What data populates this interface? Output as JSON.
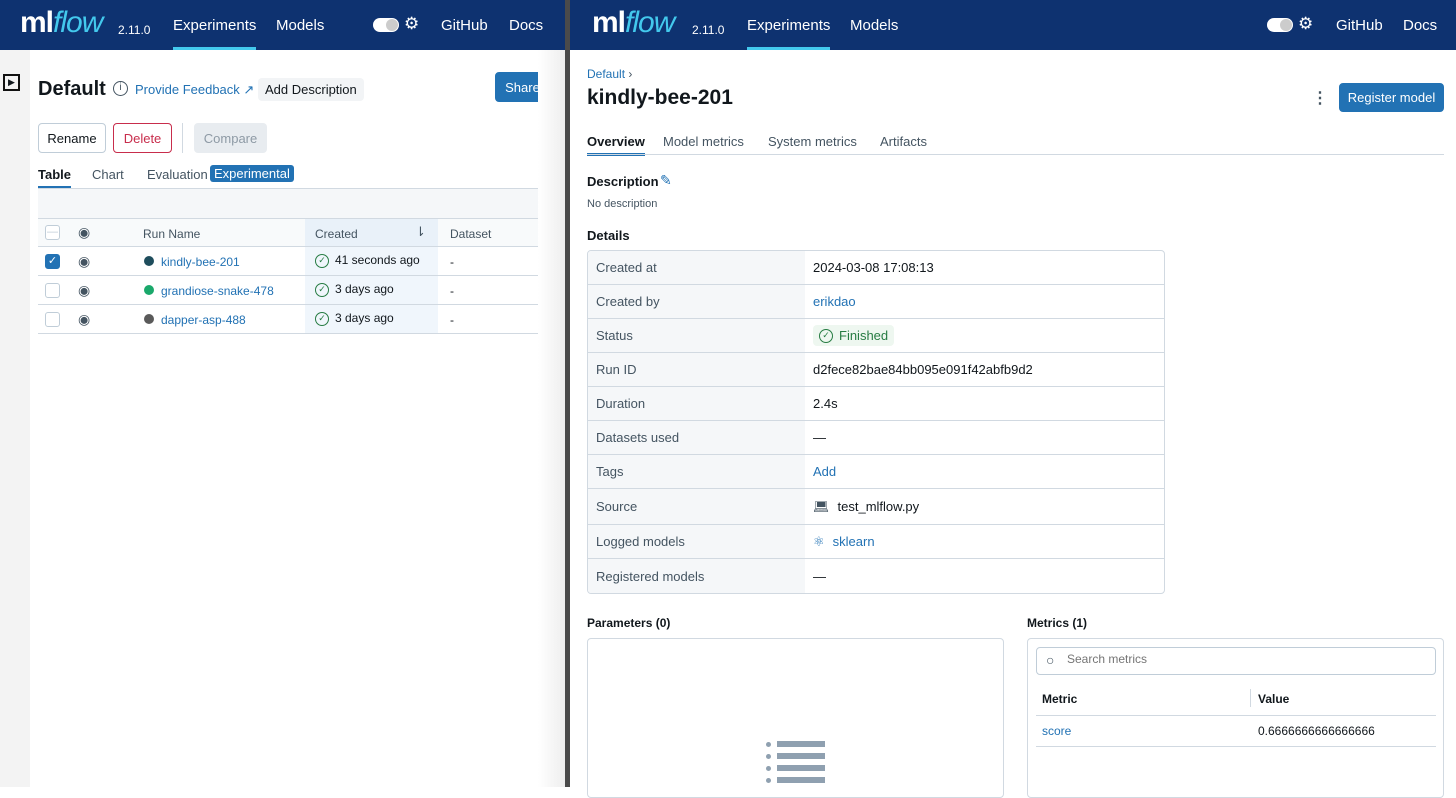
{
  "header": {
    "logo": "mlflow",
    "logo_ml": "ml",
    "logo_flow": "flow",
    "version": "2.11.0",
    "nav": [
      "Experiments",
      "Models"
    ],
    "links": [
      "GitHub",
      "Docs"
    ]
  },
  "left": {
    "title": "Default",
    "feedback": "Provide Feedback",
    "add_description": "Add Description",
    "share": "Share",
    "actions": {
      "rename": "Rename",
      "delete": "Delete",
      "compare": "Compare"
    },
    "tabs": [
      "Table",
      "Chart",
      "Evaluation"
    ],
    "experimental_badge": "Experimental",
    "columns": {
      "run_name": "Run Name",
      "created": "Created",
      "dataset": "Dataset"
    },
    "runs": [
      {
        "name": "kindly-bee-201",
        "created": "41 seconds ago",
        "dataset": "-",
        "color": "#1e4d5c",
        "checked": true
      },
      {
        "name": "grandiose-snake-478",
        "created": "3 days ago",
        "dataset": "-",
        "color": "#1aa86b",
        "checked": false
      },
      {
        "name": "dapper-asp-488",
        "created": "3 days ago",
        "dataset": "-",
        "color": "#5a5a5a",
        "checked": false
      }
    ]
  },
  "right": {
    "breadcrumb": "Default",
    "title": "kindly-bee-201",
    "register": "Register model",
    "tabs": [
      "Overview",
      "Model metrics",
      "System metrics",
      "Artifacts"
    ],
    "description_label": "Description",
    "description": "No description",
    "details_label": "Details",
    "details": [
      {
        "label": "Created at",
        "value": "2024-03-08 17:08:13"
      },
      {
        "label": "Created by",
        "value": "erikdao"
      },
      {
        "label": "Status",
        "value": "Finished"
      },
      {
        "label": "Run ID",
        "value": "d2fece82bae84bb095e091f42abfb9d2"
      },
      {
        "label": "Duration",
        "value": "2.4s"
      },
      {
        "label": "Datasets used",
        "value": "—"
      },
      {
        "label": "Tags",
        "value": "Add"
      },
      {
        "label": "Source",
        "value": "test_mlflow.py"
      },
      {
        "label": "Logged models",
        "value": "sklearn"
      },
      {
        "label": "Registered models",
        "value": "—"
      }
    ],
    "parameters_label": "Parameters (0)",
    "metrics_label": "Metrics (1)",
    "search_placeholder": "Search metrics",
    "metric_cols": [
      "Metric",
      "Value"
    ],
    "metrics": [
      {
        "name": "score",
        "value": "0.6666666666666666"
      }
    ]
  }
}
